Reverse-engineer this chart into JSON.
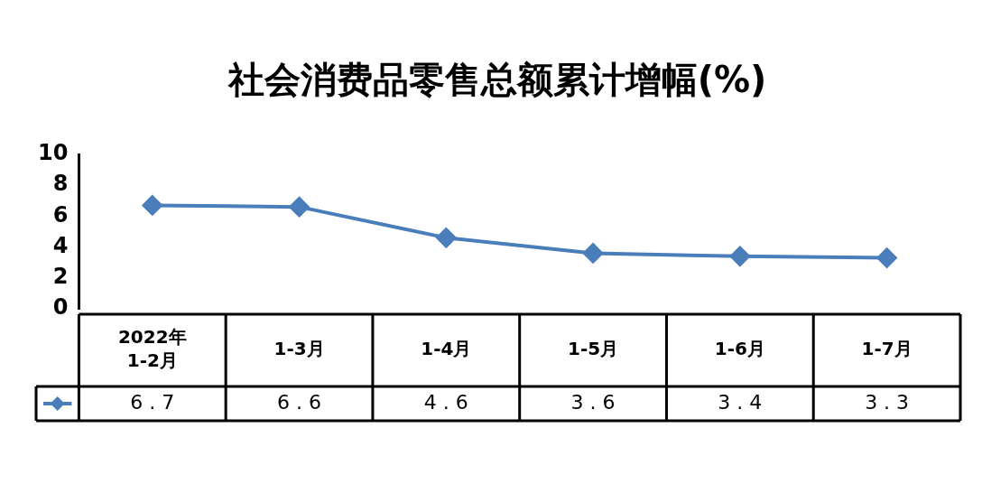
{
  "chart_data": {
    "type": "line",
    "title": "社会消费品零售总额累计增幅(%)",
    "categories": [
      "2022年\n1-2月",
      "1-3月",
      "1-4月",
      "1-5月",
      "1-6月",
      "1-7月"
    ],
    "series": [
      {
        "color": "#4a7ebb",
        "values": [
          6.7,
          6.6,
          4.6,
          3.6,
          3.4,
          3.3
        ]
      }
    ],
    "ylim": [
      0,
      10
    ],
    "yticks": [
      0,
      2,
      4,
      6,
      8,
      10
    ],
    "grid": false,
    "legend": false,
    "marker": "diamond",
    "line_style": "solid",
    "data_labels": true
  }
}
